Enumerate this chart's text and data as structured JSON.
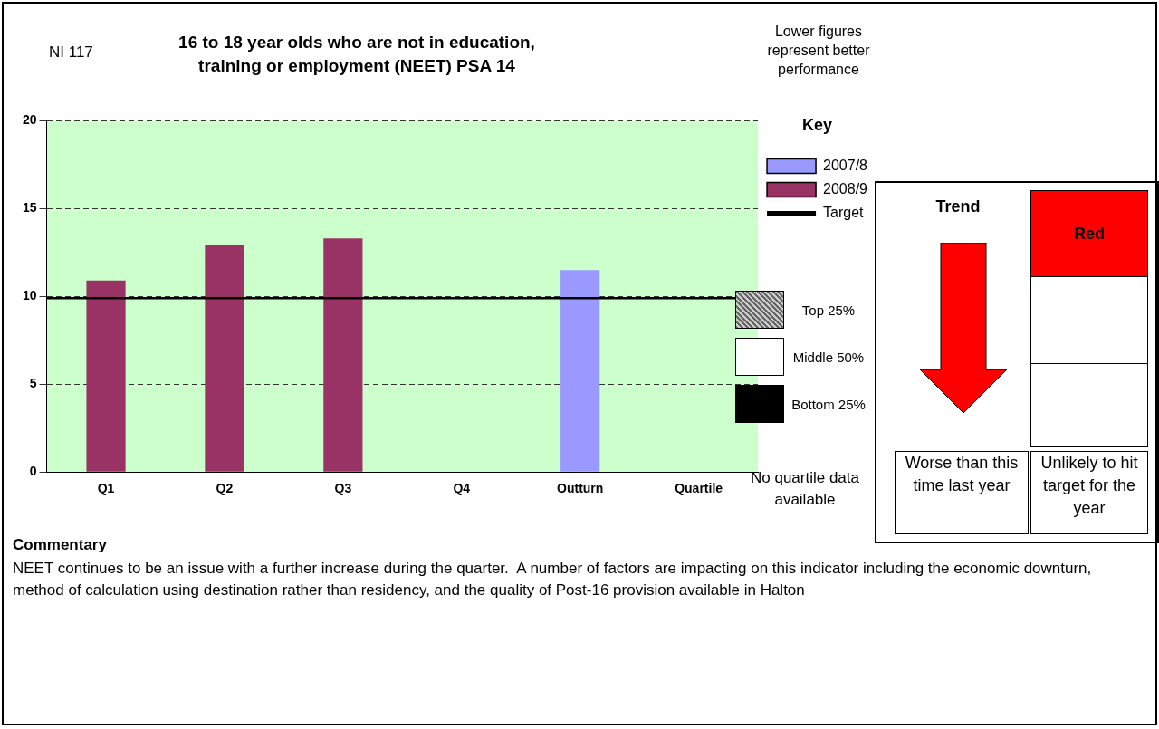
{
  "chart_data": {
    "type": "bar",
    "title": "16 to 18 year olds who are not in education, training or employment (NEET) PSA 14",
    "categories": [
      "Q1",
      "Q2",
      "Q3",
      "Q4",
      "Outturn",
      "Quartile"
    ],
    "series": [
      {
        "name": "2007/8",
        "color": "#9999ff",
        "values": [
          null,
          null,
          null,
          null,
          11.5,
          null
        ]
      },
      {
        "name": "2008/9",
        "color": "#993366",
        "values": [
          10.9,
          12.9,
          13.3,
          null,
          null,
          null
        ]
      }
    ],
    "ylim": [
      0,
      20
    ],
    "yticks": [
      0,
      5,
      10,
      15,
      20
    ],
    "grid": "y",
    "legend": "right",
    "legend_title": "Key",
    "ref_lines": [
      {
        "axis": "y",
        "value": 9.9,
        "label": "Target",
        "color": "#000000"
      }
    ],
    "annotations": [
      "NI 117",
      "Lower figures represent better performance",
      "Top 25%",
      "Middle 50%",
      "Bottom 25%",
      "No quartile data available",
      "Trend",
      "Red",
      "Worse than this time last year",
      "Unlikely to hit target for the year",
      "Commentary",
      "NEET continues to be an issue with a further increase during the quarter.  A number of factors are impacting on this indicator including the economic downturn, method of calculation using destination rather than residency, and the quality of Post-16 provision available in Halton"
    ]
  }
}
